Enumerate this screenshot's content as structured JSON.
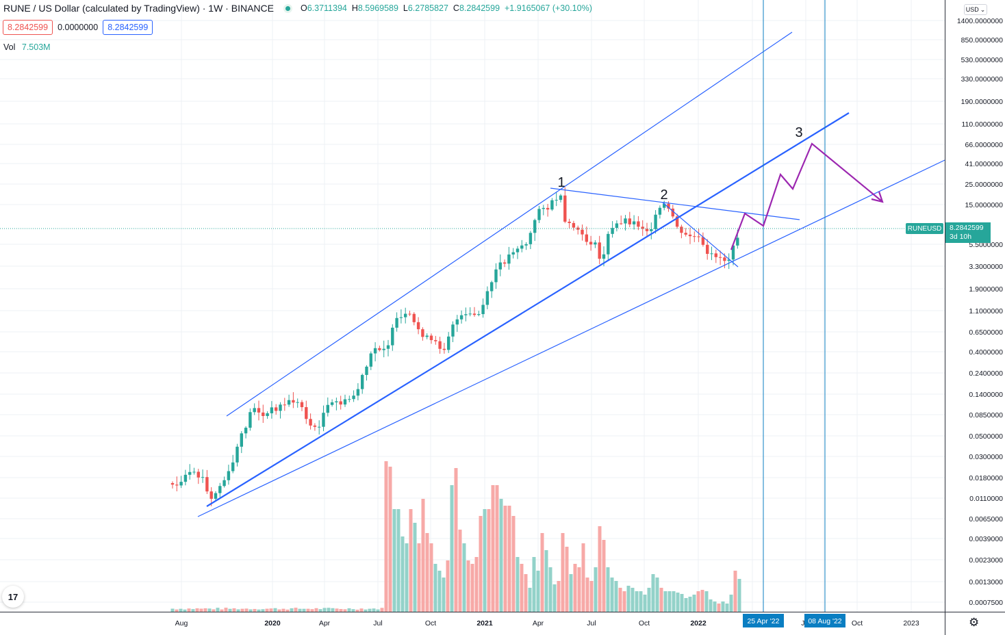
{
  "header": {
    "title": "RUNE / US Dollar (calculated by TradingView) · 1W · BINANCE",
    "ohlc": [
      {
        "key": "O",
        "value": "6.3711394"
      },
      {
        "key": "H",
        "value": "8.5969589"
      },
      {
        "key": "L",
        "value": "6.2785827"
      },
      {
        "key": "C",
        "value": "8.2842599"
      }
    ],
    "change": "+1.9165067 (+30.10%)"
  },
  "trade": {
    "sell_price": "8.2842599",
    "spread": "0.0000000",
    "buy_price": "8.2842599"
  },
  "volume": {
    "label": "Vol",
    "value": "7.503M"
  },
  "price_scale": {
    "currency": "USD",
    "last_price_label": "8.2842599",
    "countdown": "3d 10h",
    "symbol_tag": "RUNEUSD"
  },
  "colors": {
    "up": "#26a69a",
    "down": "#ef5350",
    "up_volume": "#93d2c9",
    "down_volume": "#f7a9a7",
    "trendline": "#2962ff",
    "projection": "#9c27b0",
    "vertical_line": "#0a7ec2",
    "grid": "#edf0f4"
  },
  "chart_data": {
    "type": "candlestick",
    "symbol": "RUNEUSD",
    "interval": "1W",
    "y_scale": "log",
    "y_ticks": [
      "1400.0000000",
      "850.0000000",
      "530.0000000",
      "330.0000000",
      "190.0000000",
      "110.0000000",
      "66.0000000",
      "41.0000000",
      "25.0000000",
      "15.0000000",
      "5.5000000",
      "3.3000000",
      "1.9000000",
      "1.1000000",
      "0.6500000",
      "0.4000000",
      "0.2400000",
      "0.1400000",
      "0.0850000",
      "0.0500000",
      "0.0300000",
      "0.0180000",
      "0.0110000",
      "0.0065000",
      "0.0039000",
      "0.0023000",
      "0.0013000",
      "0.0007500"
    ],
    "x_ticks": [
      "Aug",
      "2020",
      "Apr",
      "Jul",
      "Oct",
      "2021",
      "Apr",
      "Jul",
      "Oct",
      "2022",
      "Apr",
      "Jul",
      "Aug",
      "Oct",
      "2023"
    ],
    "bold_x_ticks": [
      "2020",
      "2021",
      "2022"
    ],
    "highlighted_dates": [
      "25 Apr '22",
      "08 Aug '22"
    ],
    "wave_labels": [
      "1",
      "2",
      "3"
    ]
  }
}
